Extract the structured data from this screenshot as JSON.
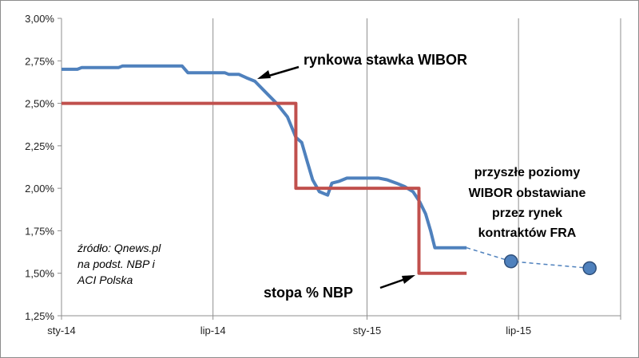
{
  "chart_data": {
    "type": "line",
    "x_ticks": [
      "sty-14",
      "lip-14",
      "sty-15",
      "lip-15"
    ],
    "y_ticks": [
      "1,25%",
      "1,50%",
      "1,75%",
      "2,00%",
      "2,25%",
      "2,50%",
      "2,75%",
      "3,00%"
    ],
    "ylim": [
      1.25,
      3.0
    ],
    "xlim": [
      "2014-01-01",
      "2015-10-31"
    ],
    "grid": "vertical",
    "series": [
      {
        "name": "rynkowa stawka WIBOR",
        "color": "#4f81bd",
        "points": [
          [
            "2014-01-01",
            2.7
          ],
          [
            "2014-01-20",
            2.7
          ],
          [
            "2014-01-25",
            2.71
          ],
          [
            "2014-03-10",
            2.71
          ],
          [
            "2014-03-15",
            2.72
          ],
          [
            "2014-05-25",
            2.72
          ],
          [
            "2014-06-01",
            2.68
          ],
          [
            "2014-07-15",
            2.68
          ],
          [
            "2014-07-20",
            2.67
          ],
          [
            "2014-08-01",
            2.67
          ],
          [
            "2014-08-10",
            2.65
          ],
          [
            "2014-08-20",
            2.63
          ],
          [
            "2014-09-01",
            2.57
          ],
          [
            "2014-09-15",
            2.5
          ],
          [
            "2014-09-28",
            2.42
          ],
          [
            "2014-10-08",
            2.3
          ],
          [
            "2014-10-15",
            2.27
          ],
          [
            "2014-10-22",
            2.15
          ],
          [
            "2014-10-28",
            2.05
          ],
          [
            "2014-11-05",
            1.98
          ],
          [
            "2014-11-15",
            1.96
          ],
          [
            "2014-11-20",
            2.03
          ],
          [
            "2014-11-28",
            2.04
          ],
          [
            "2014-12-08",
            2.06
          ],
          [
            "2015-01-15",
            2.06
          ],
          [
            "2015-01-25",
            2.05
          ],
          [
            "2015-02-05",
            2.03
          ],
          [
            "2015-02-15",
            2.01
          ],
          [
            "2015-02-25",
            1.98
          ],
          [
            "2015-03-05",
            1.92
          ],
          [
            "2015-03-12",
            1.85
          ],
          [
            "2015-03-18",
            1.75
          ],
          [
            "2015-03-23",
            1.65
          ],
          [
            "2015-04-30",
            1.65
          ]
        ]
      },
      {
        "name": "stopa % NBP",
        "color": "#c0504d",
        "points": [
          [
            "2014-01-01",
            2.5
          ],
          [
            "2014-10-08",
            2.5
          ],
          [
            "2014-10-08",
            2.0
          ],
          [
            "2015-03-04",
            2.0
          ],
          [
            "2015-03-04",
            1.5
          ],
          [
            "2015-04-30",
            1.5
          ]
        ]
      },
      {
        "name": "przyszłe poziomy WIBOR obstawiane przez rynek kontraktów FRA",
        "color": "#4f81bd",
        "style": "dashed-markers",
        "points": [
          [
            "2015-04-30",
            1.65
          ],
          [
            "2015-06-22",
            1.57
          ],
          [
            "2015-09-24",
            1.53
          ]
        ]
      }
    ],
    "annotations": {
      "wibor": "rynkowa stawka WIBOR",
      "nbp": "stopa % NBP",
      "fra": [
        "przyszłe poziomy",
        "WIBOR obstawiane",
        "przez rynek",
        "kontraktów FRA"
      ],
      "source": [
        "źródło: Qnews.pl",
        "na podst. NBP i",
        "ACI Polska"
      ]
    }
  }
}
